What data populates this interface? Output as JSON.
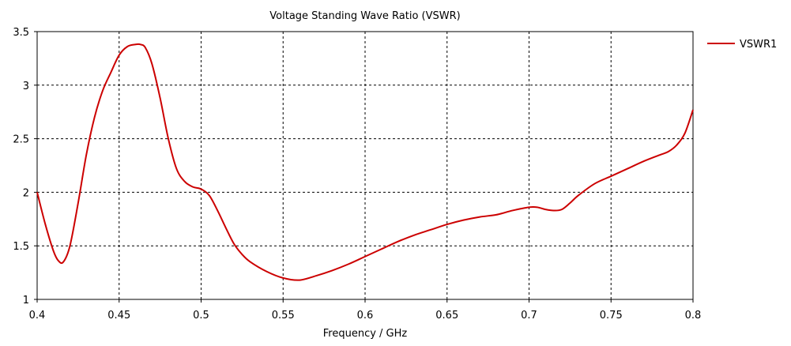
{
  "chart_data": {
    "type": "line",
    "title": "Voltage Standing Wave Ratio (VSWR)",
    "xlabel": "Frequency / GHz",
    "ylabel": "",
    "xlim": [
      0.4,
      0.8
    ],
    "ylim": [
      1,
      3.5
    ],
    "xticks": [
      0.4,
      0.45,
      0.5,
      0.55,
      0.6,
      0.65,
      0.7,
      0.75,
      0.8
    ],
    "yticks": [
      1,
      1.5,
      2,
      2.5,
      3,
      3.5
    ],
    "xtick_labels": [
      "0.4",
      "0.45",
      "0.5",
      "0.55",
      "0.6",
      "0.65",
      "0.7",
      "0.75",
      "0.8"
    ],
    "ytick_labels": [
      "1",
      "1.5",
      "2",
      "2.5",
      "3",
      "3.5"
    ],
    "grid": true,
    "grid_style": "dashed",
    "legend_position": "right",
    "series": [
      {
        "name": "VSWR1",
        "color": "#cc0000",
        "x": [
          0.4,
          0.405,
          0.41,
          0.413,
          0.416,
          0.42,
          0.425,
          0.43,
          0.435,
          0.44,
          0.445,
          0.45,
          0.455,
          0.46,
          0.463,
          0.466,
          0.47,
          0.475,
          0.48,
          0.485,
          0.49,
          0.495,
          0.5,
          0.505,
          0.51,
          0.515,
          0.52,
          0.525,
          0.53,
          0.54,
          0.55,
          0.56,
          0.57,
          0.58,
          0.59,
          0.6,
          0.61,
          0.62,
          0.63,
          0.64,
          0.65,
          0.66,
          0.67,
          0.68,
          0.69,
          0.7,
          0.705,
          0.71,
          0.715,
          0.72,
          0.725,
          0.73,
          0.74,
          0.75,
          0.76,
          0.77,
          0.78,
          0.785,
          0.79,
          0.795,
          0.8
        ],
        "y": [
          2.0,
          1.7,
          1.45,
          1.36,
          1.35,
          1.5,
          1.9,
          2.35,
          2.7,
          2.95,
          3.12,
          3.28,
          3.36,
          3.38,
          3.38,
          3.35,
          3.2,
          2.88,
          2.5,
          2.22,
          2.1,
          2.05,
          2.03,
          1.97,
          1.83,
          1.67,
          1.52,
          1.42,
          1.35,
          1.26,
          1.2,
          1.18,
          1.22,
          1.27,
          1.33,
          1.4,
          1.47,
          1.54,
          1.6,
          1.65,
          1.7,
          1.74,
          1.77,
          1.79,
          1.83,
          1.86,
          1.86,
          1.84,
          1.83,
          1.84,
          1.9,
          1.97,
          2.08,
          2.15,
          2.22,
          2.29,
          2.35,
          2.38,
          2.44,
          2.55,
          2.77
        ]
      }
    ]
  }
}
